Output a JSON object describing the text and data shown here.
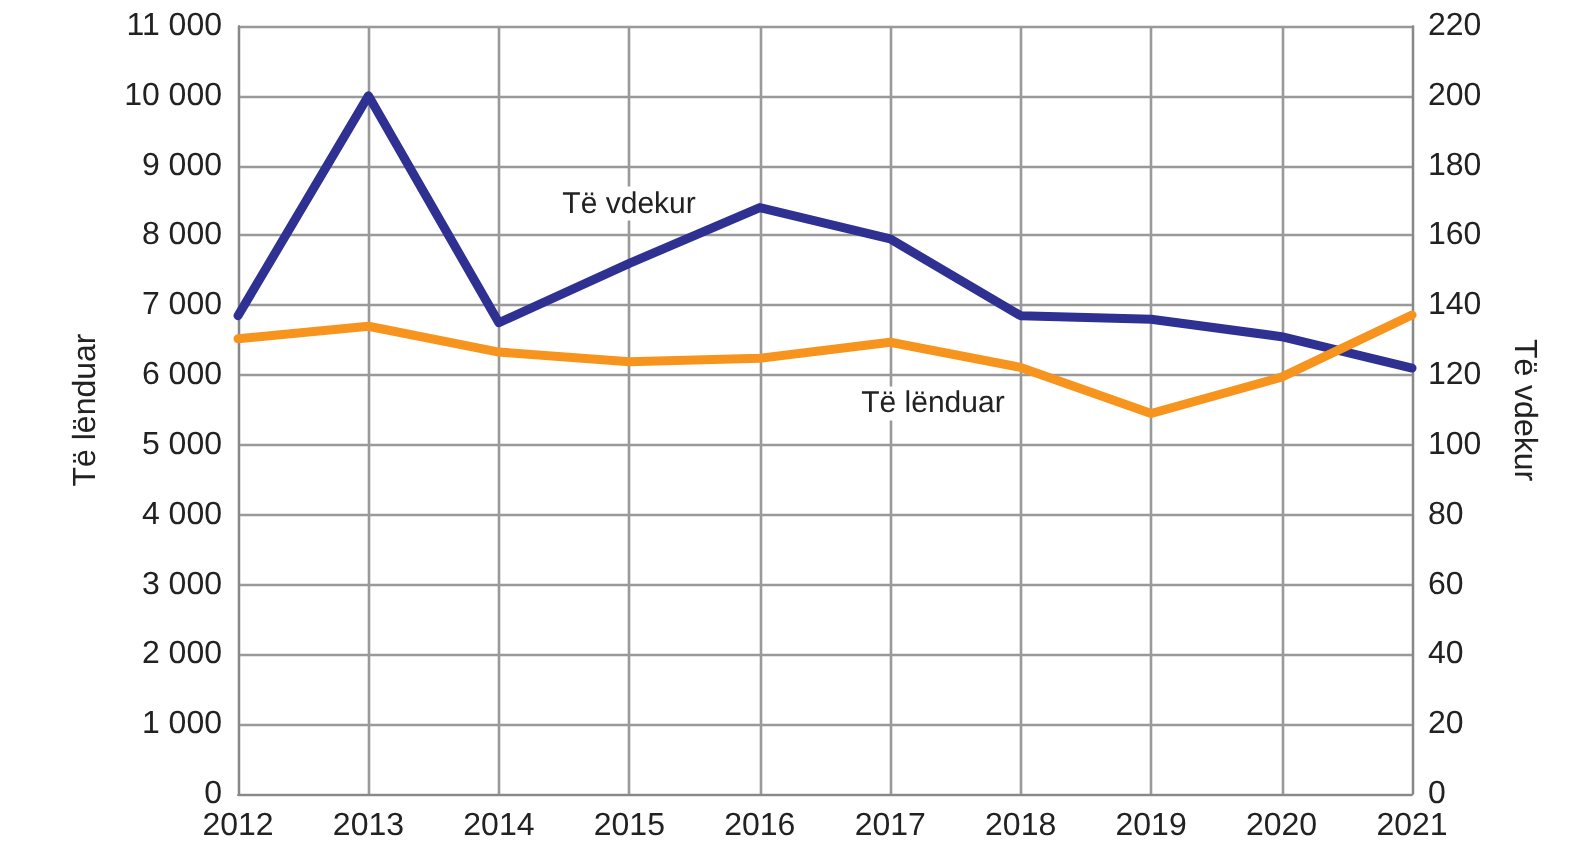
{
  "chart_data": {
    "type": "line",
    "ylabel": "Të lënduar",
    "y2label": "Të vdekur",
    "x": [
      2012,
      2013,
      2014,
      2015,
      2016,
      2017,
      2018,
      2019,
      2020,
      2021
    ],
    "xlim": [
      2012,
      2021
    ],
    "xticks": [
      2012,
      2013,
      2014,
      2015,
      2016,
      2017,
      2018,
      2019,
      2020,
      2021
    ],
    "ylim": [
      0,
      11000
    ],
    "yticks": [
      0,
      {
        "value": 1000,
        "label": "1 000"
      },
      {
        "value": 2000,
        "label": "2 000"
      },
      {
        "value": 3000,
        "label": "3 000"
      },
      {
        "value": 4000,
        "label": "4 000"
      },
      {
        "value": 5000,
        "label": "5 000"
      },
      {
        "value": 6000,
        "label": "6 000"
      },
      {
        "value": 7000,
        "label": "7 000"
      },
      {
        "value": 8000,
        "label": "8 000"
      },
      {
        "value": 9000,
        "label": "9 000"
      },
      {
        "value": 10000,
        "label": "10 000"
      },
      {
        "value": 11000,
        "label": "11 000"
      }
    ],
    "y2lim": [
      0,
      220
    ],
    "y2ticks": [
      0,
      20,
      40,
      60,
      80,
      100,
      120,
      140,
      160,
      180,
      200,
      220
    ],
    "grid": true,
    "legend": false,
    "marker": "none",
    "line_style": "solid",
    "series": [
      {
        "name": "Të vdekur",
        "color": "#2e3192",
        "axis": "y2",
        "values": [
          137,
          200,
          135,
          152,
          168,
          159,
          137,
          136,
          131,
          122
        ]
      },
      {
        "name": "Të lënduar",
        "color": "#f7941d",
        "values": [
          6520,
          6700,
          6330,
          6190,
          6240,
          6470,
          6110,
          5450,
          5970,
          6860
        ]
      }
    ]
  }
}
